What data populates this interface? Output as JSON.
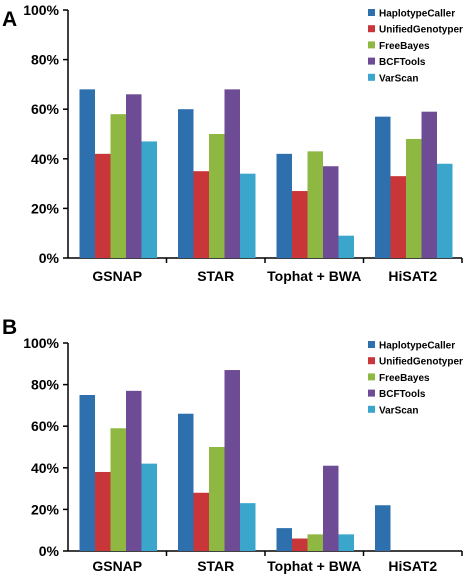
{
  "chart_data": [
    {
      "type": "bar",
      "panel_label": "A",
      "title": "",
      "xlabel": "",
      "ylabel": "",
      "categories": [
        "GSNAP",
        "STAR",
        "Tophat + BWA",
        "HiSAT2"
      ],
      "ylim": [
        0,
        100
      ],
      "y_ticks": [
        "0%",
        "20%",
        "40%",
        "60%",
        "80%",
        "100%"
      ],
      "grid": false,
      "legend_position": "top-right",
      "series": [
        {
          "name": "HaplotypeCaller",
          "color": "#2e6fad",
          "values": [
            68,
            60,
            42,
            57
          ]
        },
        {
          "name": "UnifiedGenotyper",
          "color": "#c8363a",
          "values": [
            42,
            35,
            27,
            33
          ]
        },
        {
          "name": "FreeBayes",
          "color": "#8fb842",
          "values": [
            58,
            50,
            43,
            48
          ]
        },
        {
          "name": "BCFTools",
          "color": "#6e4b95",
          "values": [
            66,
            68,
            37,
            59
          ]
        },
        {
          "name": "VarScan",
          "color": "#3aa6cc",
          "values": [
            47,
            34,
            9,
            38
          ]
        }
      ]
    },
    {
      "type": "bar",
      "panel_label": "B",
      "title": "",
      "xlabel": "",
      "ylabel": "",
      "categories": [
        "GSNAP",
        "STAR",
        "Tophat + BWA",
        "HiSAT2"
      ],
      "ylim": [
        0,
        100
      ],
      "y_ticks": [
        "0%",
        "20%",
        "40%",
        "60%",
        "80%",
        "100%"
      ],
      "grid": false,
      "legend_position": "top-right",
      "series": [
        {
          "name": "HaplotypeCaller",
          "color": "#2e6fad",
          "values": [
            75,
            66,
            11,
            22
          ]
        },
        {
          "name": "UnifiedGenotyper",
          "color": "#c8363a",
          "values": [
            38,
            28,
            6,
            0
          ]
        },
        {
          "name": "FreeBayes",
          "color": "#8fb842",
          "values": [
            59,
            50,
            8,
            0
          ]
        },
        {
          "name": "BCFTools",
          "color": "#6e4b95",
          "values": [
            77,
            87,
            41,
            0
          ]
        },
        {
          "name": "VarScan",
          "color": "#3aa6cc",
          "values": [
            42,
            23,
            8,
            0
          ]
        }
      ]
    }
  ]
}
